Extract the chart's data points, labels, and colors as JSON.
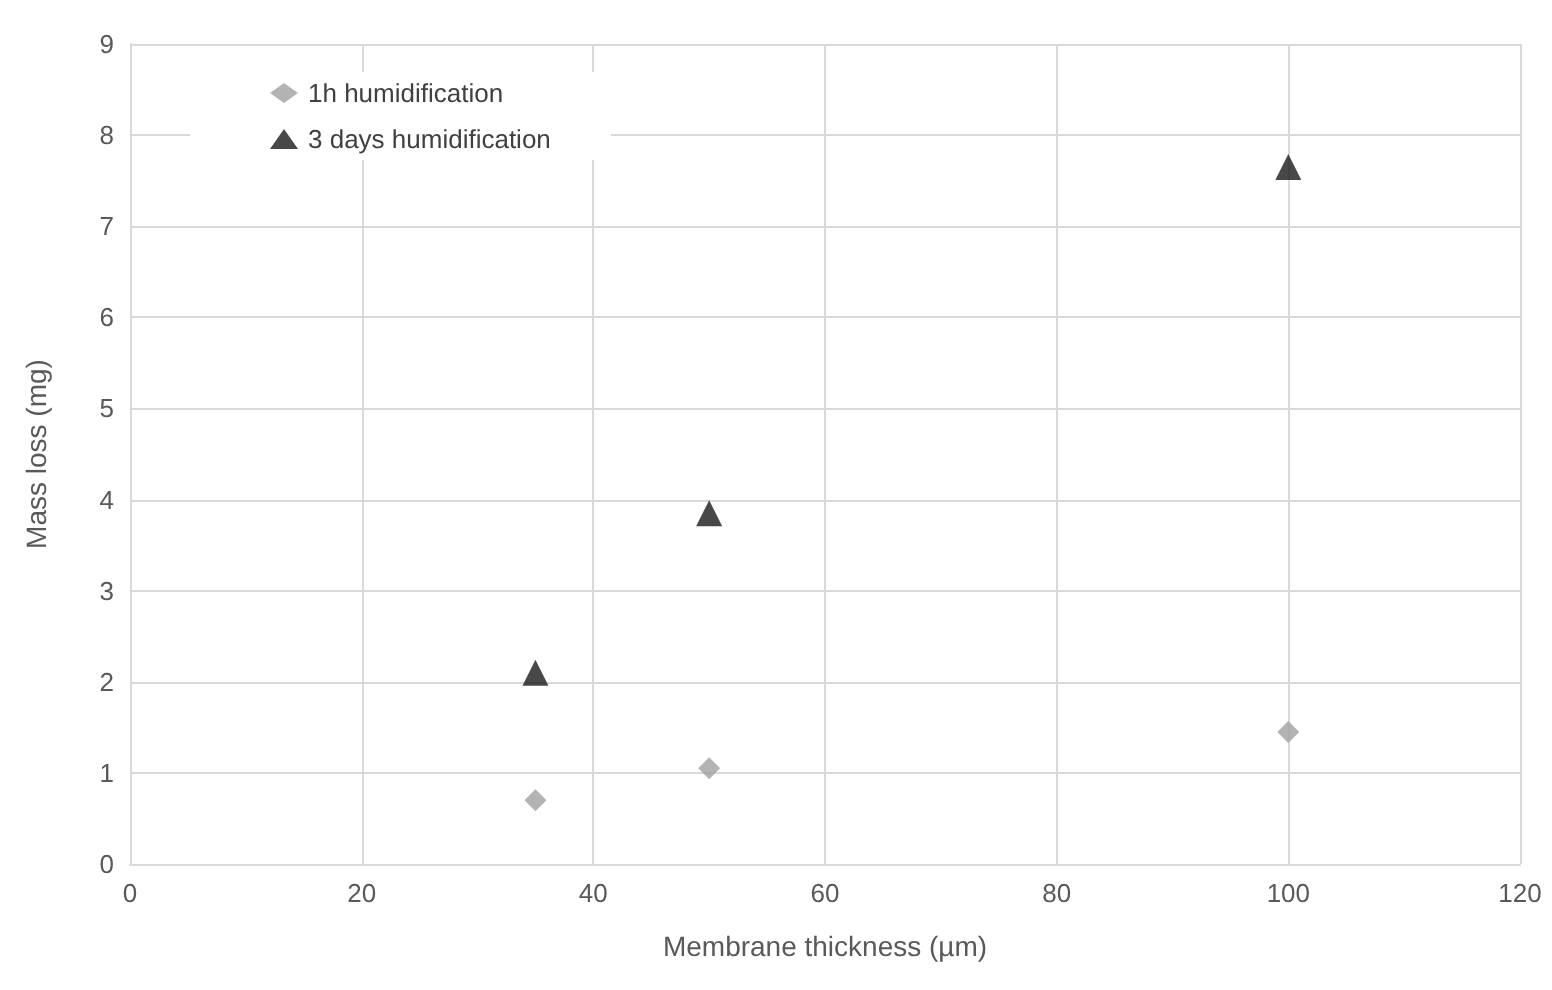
{
  "chart_data": {
    "type": "scatter",
    "xlabel": "Membrane thickness (µm)",
    "ylabel": "Mass loss (mg)",
    "x": [
      35,
      50,
      100
    ],
    "series": [
      {
        "name": "1h humidification",
        "color": "#a0a0a0",
        "marker": "diamond",
        "values": [
          0.7,
          1.05,
          1.45
        ]
      },
      {
        "name": "3 days humidification",
        "color": "#1a1a1a",
        "marker": "triangle",
        "values": [
          2.1,
          3.85,
          7.65
        ]
      }
    ],
    "xlim": [
      0,
      120
    ],
    "xticks": [
      0,
      20,
      40,
      60,
      80,
      100,
      120
    ],
    "ylim": [
      0,
      9
    ],
    "yticks": [
      0,
      1,
      2,
      3,
      4,
      5,
      6,
      7,
      8,
      9
    ],
    "grid": true,
    "legend": "top left"
  }
}
